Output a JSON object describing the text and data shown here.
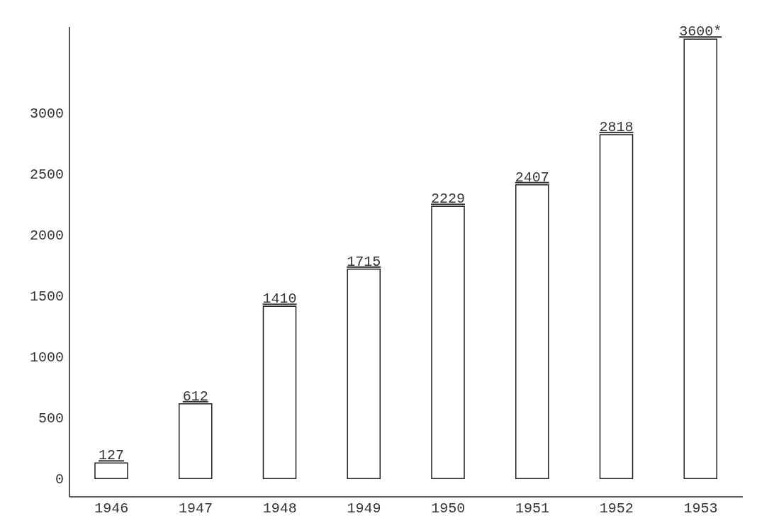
{
  "chart_data": {
    "type": "bar",
    "categories": [
      "1946",
      "1947",
      "1948",
      "1949",
      "1950",
      "1951",
      "1952",
      "1953"
    ],
    "values": [
      127,
      612,
      1410,
      1715,
      2229,
      2407,
      2818,
      3600
    ],
    "value_labels": [
      "127",
      "612",
      "1410",
      "1715",
      "2229",
      "2407",
      "2818",
      "3600*"
    ],
    "color": "#ffffff",
    "ylim": [
      -150,
      3700
    ],
    "yticks": [
      0,
      500,
      1000,
      1500,
      2000,
      2500,
      3000
    ],
    "grid": false
  }
}
